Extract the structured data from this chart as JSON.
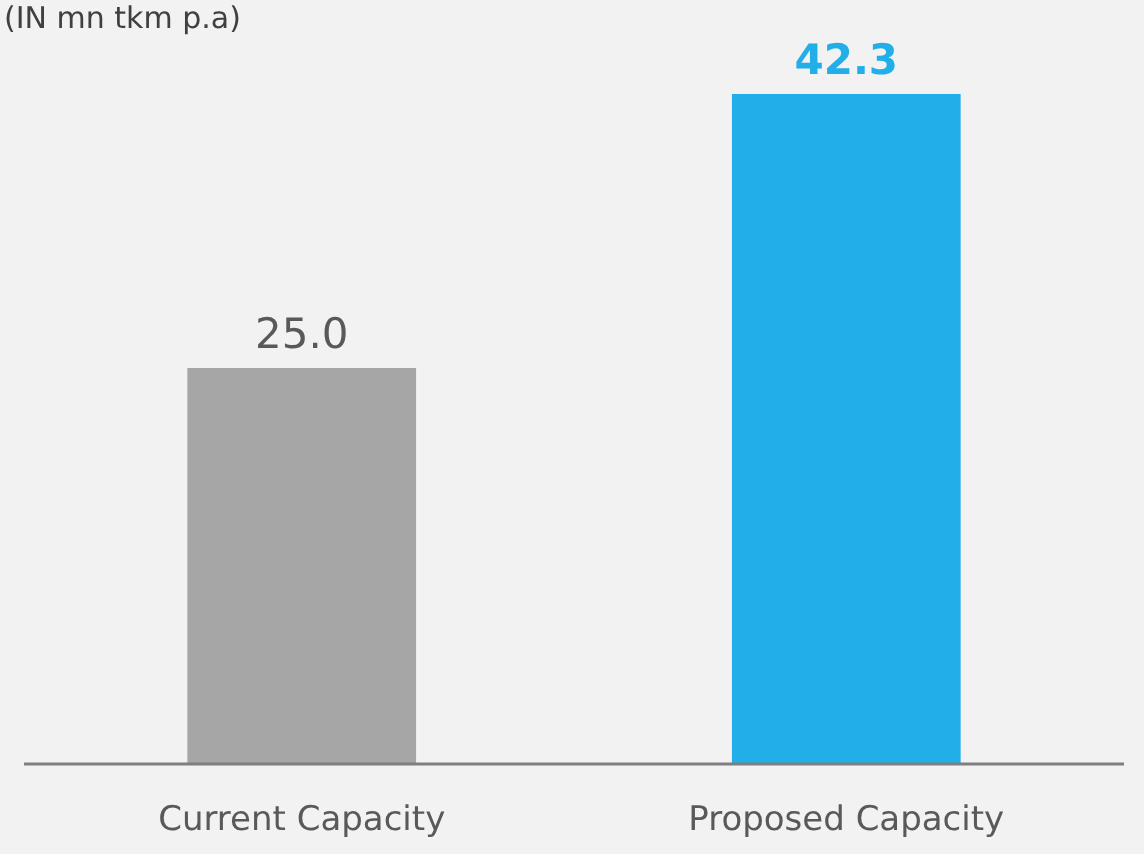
{
  "chart_data": {
    "type": "bar",
    "title": "(IN mn tkm p.a)",
    "categories": [
      "Current Capacity",
      "Proposed Capacity"
    ],
    "values": [
      25.0,
      42.3
    ],
    "colors": [
      "#a6a6a6",
      "#22aee8"
    ],
    "value_labels": [
      "25.0",
      "42.3"
    ]
  }
}
